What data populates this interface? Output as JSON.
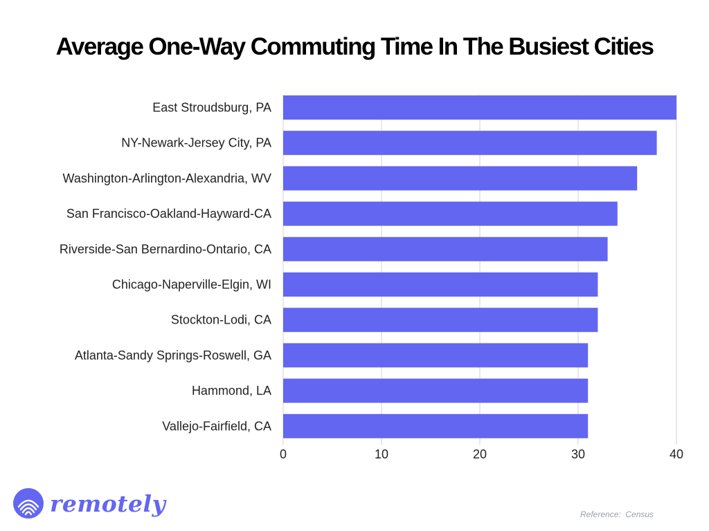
{
  "chart_data": {
    "type": "bar",
    "orientation": "horizontal",
    "title": "Average One-Way Commuting Time In The Busiest Cities",
    "categories": [
      "East Stroudsburg, PA",
      "NY-Newark-Jersey City, PA",
      "Washington-Arlington-Alexandria, WV",
      "San Francisco-Oakland-Hayward-CA",
      "Riverside-San Bernardino-Ontario, CA",
      "Chicago-Naperville-Elgin, WI",
      "Stockton-Lodi, CA",
      "Atlanta-Sandy Springs-Roswell, GA",
      "Hammond, LA",
      "Vallejo-Fairfield, CA"
    ],
    "values": [
      40,
      38,
      36,
      34,
      33,
      32,
      32,
      31,
      31,
      31
    ],
    "xlim": [
      0,
      40
    ],
    "xticks": [
      "0",
      "10",
      "20",
      "30",
      "40"
    ],
    "xlabel": "",
    "ylabel": "",
    "grid": true,
    "bar_color": "#6366F1"
  },
  "branding": {
    "logo_text": "remotely",
    "logo_color": "#6366F1"
  },
  "footer": {
    "reference": "Reference:  Census"
  }
}
